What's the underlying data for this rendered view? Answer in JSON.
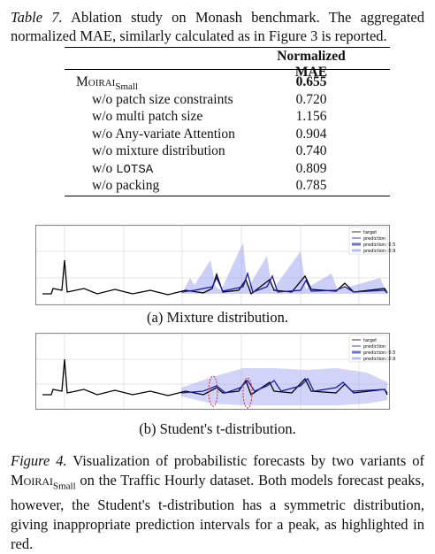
{
  "table_caption": {
    "label": "Table 7.",
    "text": "Ablation study on Monash benchmark. The aggregated normalized MAE, similarly calculated as in Figure 3 is reported."
  },
  "table": {
    "header": "Normalized MAE",
    "rows": [
      {
        "name": "Moirai",
        "subscript": "Small",
        "value": "0.655"
      },
      {
        "name": "w/o patch size constraints",
        "value": "0.720"
      },
      {
        "name": "w/o multi patch size",
        "value": "1.156"
      },
      {
        "name": "w/o Any-variate Attention",
        "value": "0.904"
      },
      {
        "name": "w/o mixture distribution",
        "value": "0.740"
      },
      {
        "name": "w/o",
        "code": "LOTSA",
        "value": "0.809"
      },
      {
        "name": "w/o packing",
        "value": "0.785"
      }
    ]
  },
  "panels": [
    {
      "caption": "(a) Mixture distribution.",
      "legend": [
        "target",
        "prediction",
        "prediction: 0.5",
        "prediction: 0.9"
      ]
    },
    {
      "caption": "(b) Student's t-distribution.",
      "legend": [
        "target",
        "prediction",
        "prediction: 0.5",
        "prediction: 0.9"
      ]
    }
  ],
  "figure_caption": {
    "label": "Figure 4.",
    "text_before": "Visualization of probabilistic forecasts by two variants of",
    "model": "Moirai",
    "subscript": "Small",
    "text_after": "on the Traffic Hourly dataset. Both models forecast peaks, however, the Student's t-distribution has a symmetric distribution, giving inappropriate prediction intervals for a peak, as highlighted in red."
  }
}
